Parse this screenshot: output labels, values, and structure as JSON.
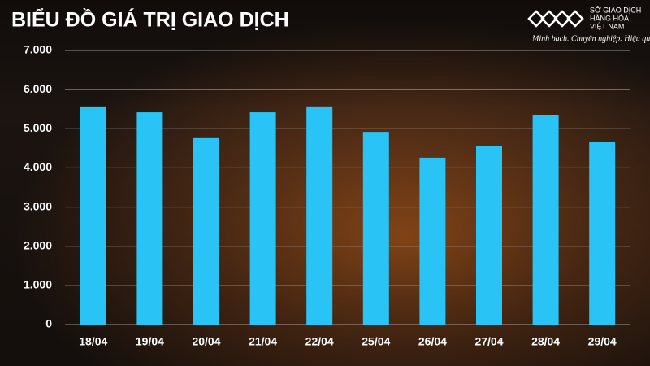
{
  "brand": {
    "name_lines": [
      "SỞ GIAO DỊCH",
      "HÀNG HÓA",
      "VIỆT NAM"
    ],
    "tagline": "Minh bạch. Chuyên nghiệp. Hiệu quả"
  },
  "chart_data": {
    "type": "bar",
    "title": "BIỂU ĐỒ GIÁ TRỊ GIAO DỊCH",
    "categories": [
      "18/04",
      "19/04",
      "20/04",
      "21/04",
      "22/04",
      "25/04",
      "26/04",
      "27/04",
      "28/04",
      "29/04"
    ],
    "values": [
      5570,
      5420,
      4760,
      5420,
      5570,
      4920,
      4260,
      4550,
      5340,
      4670
    ],
    "color": "#29c4f5",
    "ylim": [
      0,
      7000
    ],
    "yticks": [
      0,
      {
        "value": 1000,
        "label": "1.000"
      },
      {
        "value": 2000,
        "label": "2.000"
      },
      {
        "value": 3000,
        "label": "3.000"
      },
      {
        "value": 4000,
        "label": "4.000"
      },
      {
        "value": 5000,
        "label": "5.000"
      },
      {
        "value": 6000,
        "label": "6.000"
      },
      {
        "value": 7000,
        "label": "7.000"
      }
    ],
    "grid": true
  }
}
